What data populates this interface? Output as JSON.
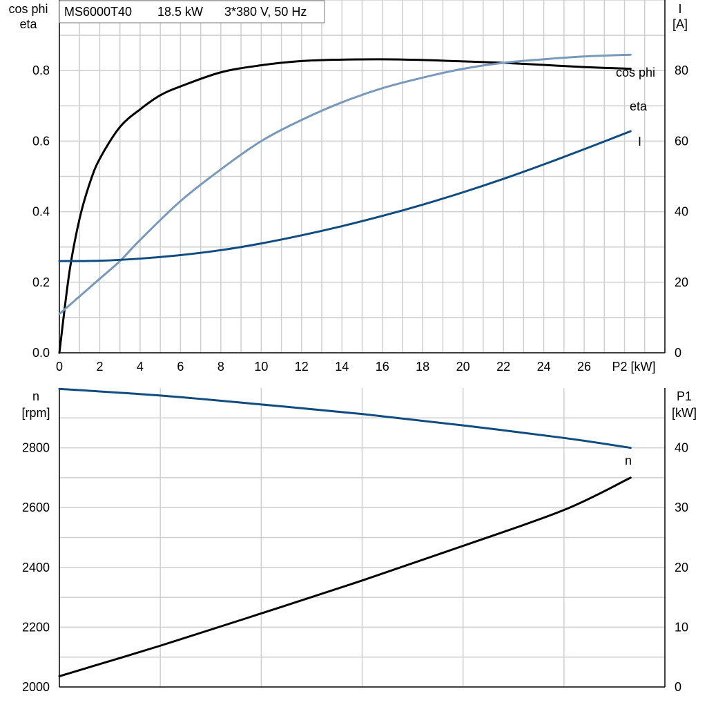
{
  "header": {
    "model": "MS6000T40",
    "power": "18.5 kW",
    "supply": "3*380 V, 50 Hz"
  },
  "colors": {
    "eta": "#000000",
    "cos_phi": "#7799bb",
    "current": "#0f4c81",
    "speed": "#0f4c81",
    "p1": "#000000",
    "grid": "#cfcfcf"
  },
  "chart_data": [
    {
      "type": "line",
      "name": "top",
      "left_axis_title": [
        "cos phi",
        "eta"
      ],
      "right_axis_title": [
        "I",
        "[A]"
      ],
      "x_tick_labels": [
        "0",
        "2",
        "4",
        "6",
        "8",
        "10",
        "12",
        "14",
        "16",
        "18",
        "20",
        "22",
        "24",
        "26"
      ],
      "x_end_label": "P2 [kW]",
      "xlim": [
        0,
        30
      ],
      "left_ylim": [
        0,
        1.0
      ],
      "right_ylim": [
        0,
        100
      ],
      "left_tick_labels": [
        "0.0",
        "0.2",
        "0.4",
        "0.6",
        "0.8"
      ],
      "right_tick_labels": [
        "0",
        "20",
        "40",
        "60",
        "80"
      ],
      "grid": true,
      "series": [
        {
          "name": "eta",
          "axis": "left",
          "color": "#000000",
          "x": [
            0,
            0.5,
            1,
            1.5,
            2,
            3,
            4,
            5,
            6,
            8,
            10,
            12,
            14,
            16,
            18,
            20,
            22,
            24,
            26,
            28.3
          ],
          "y": [
            0.0,
            0.23,
            0.38,
            0.48,
            0.55,
            0.64,
            0.69,
            0.73,
            0.755,
            0.795,
            0.815,
            0.827,
            0.831,
            0.832,
            0.83,
            0.826,
            0.822,
            0.816,
            0.81,
            0.805
          ]
        },
        {
          "name": "cos phi",
          "axis": "left",
          "color": "#7799bb",
          "x": [
            0,
            1,
            2,
            3,
            4,
            6,
            8,
            10,
            12,
            14,
            16,
            18,
            20,
            22,
            24,
            26,
            28.3
          ],
          "y": [
            0.11,
            0.16,
            0.21,
            0.26,
            0.32,
            0.43,
            0.52,
            0.6,
            0.66,
            0.71,
            0.75,
            0.78,
            0.805,
            0.822,
            0.832,
            0.84,
            0.845
          ]
        },
        {
          "name": "I",
          "axis": "right",
          "color": "#0f4c81",
          "x": [
            0,
            2,
            4,
            6,
            8,
            10,
            12,
            14,
            16,
            18,
            20,
            22,
            24,
            26,
            28.3
          ],
          "y": [
            26,
            26.1,
            26.7,
            27.7,
            29.1,
            31,
            33.3,
            35.9,
            38.8,
            42,
            45.5,
            49.3,
            53.4,
            57.7,
            62.8
          ]
        }
      ]
    },
    {
      "type": "line",
      "name": "bottom",
      "left_axis_title": [
        "n",
        "[rpm]"
      ],
      "right_axis_title": [
        "P1",
        "[kW]"
      ],
      "xlim": [
        0,
        30
      ],
      "left_ylim": [
        2000,
        3000
      ],
      "right_ylim": [
        0,
        50
      ],
      "left_tick_labels": [
        "2000",
        "2200",
        "2400",
        "2600",
        "2800"
      ],
      "right_tick_labels": [
        "0",
        "10",
        "20",
        "30",
        "40"
      ],
      "grid": true,
      "series": [
        {
          "name": "n",
          "axis": "left",
          "color": "#0f4c81",
          "x": [
            0,
            5,
            10,
            15,
            20,
            25,
            28.3
          ],
          "y": [
            2997,
            2975,
            2945,
            2913,
            2875,
            2833,
            2800
          ]
        },
        {
          "name": "",
          "axis": "right",
          "color": "#000000",
          "x": [
            0,
            5,
            10,
            15,
            20,
            25,
            28.3
          ],
          "y": [
            1.8,
            6.9,
            12.3,
            17.8,
            23.6,
            29.6,
            35
          ]
        }
      ]
    }
  ]
}
